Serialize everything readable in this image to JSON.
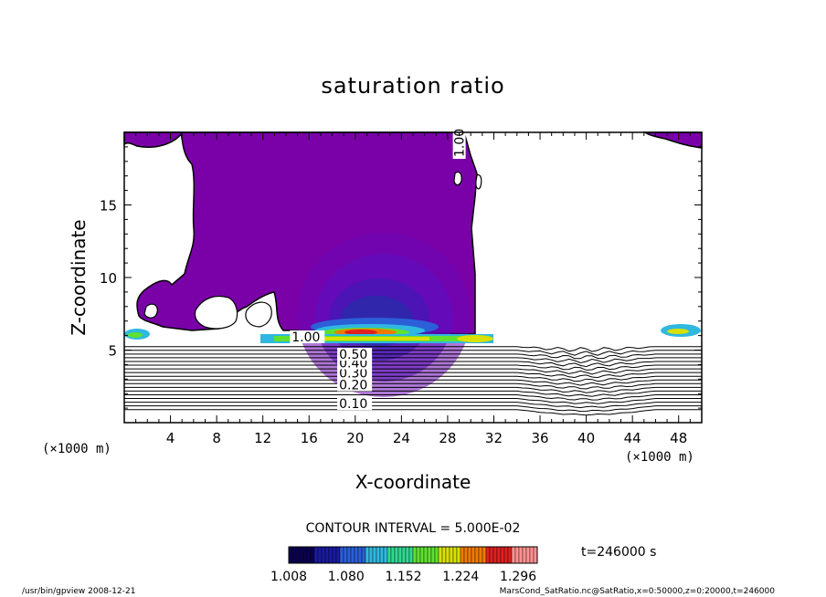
{
  "chart_data": {
    "type": "contour",
    "title": "saturation ratio",
    "xlabel": "X-coordinate",
    "ylabel": "Z-coordinate",
    "x_unit": "(×1000 m)",
    "x_unit_right": "(×1000 m)",
    "xlim": [
      0,
      50
    ],
    "ylim": [
      0,
      20
    ],
    "x_ticks": [
      4,
      8,
      12,
      16,
      20,
      24,
      28,
      32,
      36,
      40,
      44,
      48
    ],
    "y_ticks": [
      5,
      10,
      15
    ],
    "contour_interval_text": "CONTOUR INTERVAL = 5.000E-02",
    "time_text": "t=246000 s",
    "colorbar_labels": [
      "1.008",
      "1.080",
      "1.152",
      "1.224",
      "1.296"
    ],
    "colorbar_range": [
      1.008,
      1.32
    ],
    "contour_labels": [
      {
        "text": "0.10",
        "x": 18.6,
        "z": 1.0
      },
      {
        "text": "0.20",
        "x": 18.6,
        "z": 2.3
      },
      {
        "text": "0.30",
        "x": 18.6,
        "z": 3.1
      },
      {
        "text": "0.40",
        "x": 18.6,
        "z": 3.8
      },
      {
        "text": "0.50",
        "x": 18.6,
        "z": 4.4
      },
      {
        "text": "1.00",
        "x": 14.5,
        "z": 5.6
      },
      {
        "text": "1.00",
        "x": 29.4,
        "z": 18.3
      }
    ],
    "levels_below_saturation": [
      0.1,
      0.15,
      0.2,
      0.25,
      0.3,
      0.35,
      0.4,
      0.45,
      0.5,
      0.55,
      0.6,
      0.65,
      0.7,
      0.75,
      0.8,
      0.85,
      0.9,
      0.95
    ]
  },
  "footer": {
    "left": "/usr/bin/gpview   2008-12-21",
    "right": "MarsCond_SatRatio.nc@SatRatio,x=0:50000,z=0:20000,t=246000"
  },
  "colors": {
    "saturated_fill": "#7a00a8",
    "colormap": [
      "#0a0050",
      "#1a1aa0",
      "#2b5fd8",
      "#30b8e0",
      "#30d890",
      "#60e030",
      "#d8e000",
      "#f07a00",
      "#e02020",
      "#ff9090"
    ]
  }
}
